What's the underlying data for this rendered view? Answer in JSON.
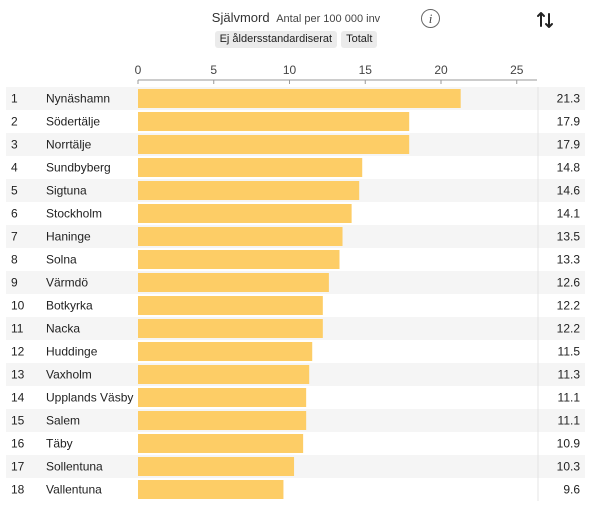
{
  "header": {
    "title": "Självmord",
    "subtitle": "Antal per 100 000 inv",
    "info_icon": "info-icon",
    "sort_icon": "sort-arrows-icon",
    "filters": [
      "Ej åldersstandardiserat",
      "Totalt"
    ]
  },
  "colors": {
    "bar": "#fdcd66",
    "row_even": "#f5f5f5",
    "row_odd": "#ffffff",
    "axis": "#999999"
  },
  "chart_data": {
    "type": "bar",
    "orientation": "horizontal",
    "title": "Självmord",
    "subtitle": "Antal per 100 000 inv",
    "xlim": [
      0,
      26
    ],
    "xticks": [
      0,
      5,
      10,
      15,
      20,
      25
    ],
    "ranks": [
      1,
      2,
      3,
      4,
      5,
      6,
      7,
      8,
      9,
      10,
      11,
      12,
      13,
      14,
      15,
      16,
      17,
      18
    ],
    "categories": [
      "Nynäshamn",
      "Södertälje",
      "Norrtälje",
      "Sundbyberg",
      "Sigtuna",
      "Stockholm",
      "Haninge",
      "Solna",
      "Värmdö",
      "Botkyrka",
      "Nacka",
      "Huddinge",
      "Vaxholm",
      "Upplands Väsby",
      "Salem",
      "Täby",
      "Sollentuna",
      "Vallentuna"
    ],
    "values": [
      21.3,
      17.9,
      17.9,
      14.8,
      14.6,
      14.1,
      13.5,
      13.3,
      12.6,
      12.2,
      12.2,
      11.5,
      11.3,
      11.1,
      11.1,
      10.9,
      10.3,
      9.6
    ],
    "value_labels": [
      "21.3",
      "17.9",
      "17.9",
      "14.8",
      "14.6",
      "14.1",
      "13.5",
      "13.3",
      "12.6",
      "12.2",
      "12.2",
      "11.5",
      "11.3",
      "11.1",
      "11.1",
      "10.9",
      "10.3",
      "9.6"
    ],
    "grid": false,
    "legend": "none"
  }
}
